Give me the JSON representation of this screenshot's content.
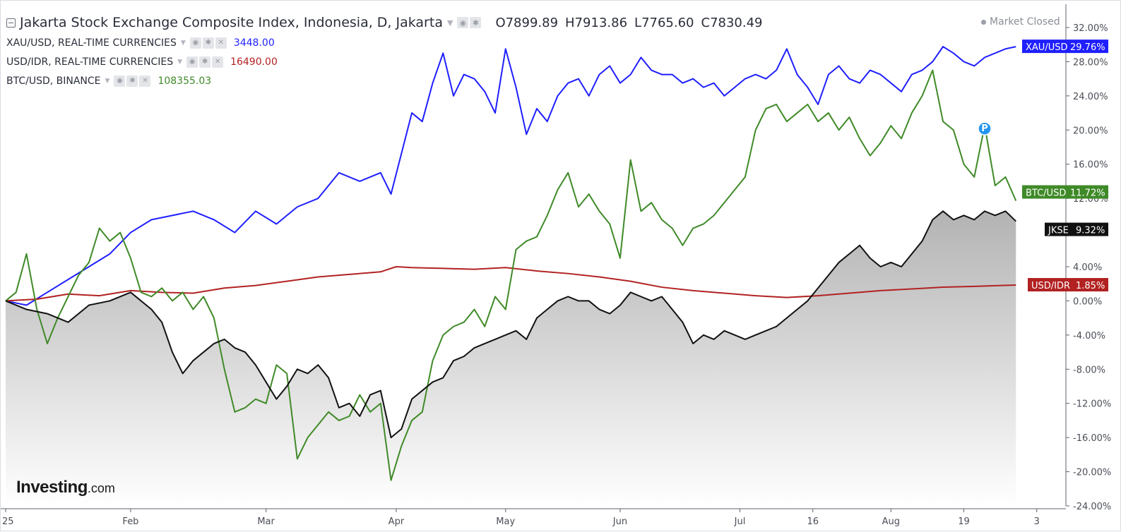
{
  "header": {
    "title": "Jakarta Stock Exchange Composite Index, Indonesia, D, Jakarta",
    "ohlc": [
      {
        "k": "O",
        "v": "7899.89"
      },
      {
        "k": "H",
        "v": "7913.86"
      },
      {
        "k": "L",
        "v": "7765.60"
      },
      {
        "k": "C",
        "v": "7830.49"
      }
    ],
    "status": "Market Closed"
  },
  "comparisons": [
    {
      "label": "XAU/USD, REAL-TIME CURRENCIES",
      "value": "3448.00",
      "color": "#1f1fff"
    },
    {
      "label": "USD/IDR, REAL-TIME CURRENCIES",
      "value": "16490.00",
      "color": "#b22222"
    },
    {
      "label": "BTC/USD, BINANCE",
      "value": "108355.03",
      "color": "#3f8a28"
    }
  ],
  "brand": {
    "main": "Investing",
    "tld": ".com"
  },
  "pin_label": "P",
  "chart_data": {
    "type": "line",
    "x": {
      "unit": "trading day index (0 = start of 2025)",
      "range": [
        0,
        196
      ],
      "tick_labels": [
        "25",
        "Feb",
        "Mar",
        "Apr",
        "May",
        "Jun",
        "Jul",
        "16",
        "Aug",
        "19",
        "3"
      ],
      "tick_positions": [
        0,
        24,
        50,
        75,
        96,
        118,
        141,
        155,
        170,
        184,
        198
      ]
    },
    "y": {
      "unit": "percent change",
      "range": [
        -24,
        32
      ],
      "ticks": [
        "32.00%",
        "28.00%",
        "24.00%",
        "20.00%",
        "16.00%",
        "12.00%",
        "8.00%",
        "4.00%",
        "0.00%",
        "-4.00%",
        "-8.00%",
        "-12.00%",
        "-16.00%",
        "-20.00%",
        "-24.00%"
      ],
      "tick_values": [
        32,
        28,
        24,
        20,
        16,
        12,
        8,
        4,
        0,
        -4,
        -8,
        -12,
        -16,
        -20,
        -24
      ]
    },
    "series": [
      {
        "name": "XAU/USD",
        "tag": "XAU/USD",
        "last_label": "29.76%",
        "color": "#1f1fff",
        "x": [
          0,
          4,
          8,
          12,
          16,
          20,
          24,
          28,
          32,
          36,
          40,
          44,
          48,
          52,
          56,
          60,
          64,
          68,
          72,
          74,
          78,
          80,
          82,
          84,
          86,
          88,
          90,
          92,
          94,
          96,
          98,
          100,
          102,
          104,
          106,
          108,
          110,
          112,
          114,
          116,
          118,
          120,
          122,
          124,
          126,
          128,
          130,
          132,
          134,
          136,
          138,
          140,
          142,
          144,
          146,
          148,
          150,
          152,
          154,
          156,
          158,
          160,
          162,
          164,
          166,
          168,
          170,
          172,
          174,
          176,
          178,
          180,
          182,
          184,
          186,
          188,
          190,
          192,
          194
        ],
        "y": [
          0.0,
          -0.5,
          1.0,
          2.5,
          4.0,
          5.5,
          8.0,
          9.5,
          10.0,
          10.5,
          9.5,
          8.0,
          10.5,
          9.0,
          11.0,
          12.0,
          15.0,
          14.0,
          15.0,
          12.5,
          22.0,
          21.0,
          25.5,
          29.0,
          24.0,
          26.5,
          26.0,
          24.5,
          22.0,
          29.5,
          25.0,
          19.5,
          22.5,
          21.0,
          24.0,
          25.5,
          26.0,
          24.0,
          26.5,
          27.5,
          25.5,
          26.5,
          28.5,
          27.0,
          26.5,
          26.5,
          25.5,
          26.0,
          25.0,
          25.5,
          24.0,
          25.0,
          26.0,
          26.5,
          26.0,
          27.0,
          29.5,
          26.5,
          25.0,
          23.0,
          26.5,
          27.5,
          26.0,
          25.5,
          27.0,
          26.5,
          25.5,
          24.5,
          26.5,
          27.0,
          28.0,
          29.76,
          29.0,
          28.0,
          27.5,
          28.5,
          29.0,
          29.5,
          29.76
        ]
      },
      {
        "name": "USD/IDR",
        "tag": "USD/IDR",
        "last_label": "1.85%",
        "color": "#b22222",
        "x": [
          0,
          6,
          12,
          18,
          24,
          30,
          36,
          42,
          48,
          54,
          60,
          66,
          72,
          75,
          78,
          84,
          90,
          96,
          102,
          108,
          114,
          120,
          126,
          132,
          138,
          144,
          150,
          156,
          162,
          168,
          174,
          180,
          186,
          194
        ],
        "y": [
          0.0,
          0.2,
          0.8,
          0.6,
          1.2,
          1.0,
          0.9,
          1.5,
          1.8,
          2.3,
          2.8,
          3.1,
          3.4,
          4.0,
          3.9,
          3.8,
          3.7,
          3.9,
          3.5,
          3.2,
          2.8,
          2.3,
          1.6,
          1.2,
          0.9,
          0.6,
          0.4,
          0.6,
          0.9,
          1.2,
          1.4,
          1.6,
          1.7,
          1.85
        ]
      },
      {
        "name": "BTC/USD",
        "tag": "BTC/USD",
        "last_label": "11.72%",
        "color": "#3f8a28",
        "x": [
          0,
          2,
          4,
          6,
          8,
          10,
          12,
          14,
          16,
          18,
          20,
          22,
          24,
          26,
          28,
          30,
          32,
          34,
          36,
          38,
          40,
          42,
          44,
          46,
          48,
          50,
          52,
          54,
          56,
          58,
          60,
          62,
          64,
          66,
          68,
          70,
          72,
          74,
          76,
          78,
          80,
          82,
          84,
          86,
          88,
          90,
          92,
          94,
          96,
          98,
          100,
          102,
          104,
          106,
          108,
          110,
          112,
          114,
          116,
          118,
          120,
          122,
          124,
          126,
          128,
          130,
          132,
          134,
          136,
          138,
          140,
          142,
          144,
          146,
          148,
          150,
          152,
          154,
          156,
          158,
          160,
          162,
          164,
          166,
          168,
          170,
          172,
          174,
          176,
          178,
          180,
          182,
          184,
          186,
          188,
          190,
          192,
          194
        ],
        "y": [
          0.0,
          1.0,
          5.5,
          -1.0,
          -5.0,
          -2.0,
          0.5,
          3.0,
          4.5,
          8.5,
          7.0,
          8.0,
          5.0,
          1.0,
          0.5,
          1.5,
          0.0,
          1.0,
          -1.0,
          0.5,
          -2.0,
          -8.0,
          -13.0,
          -12.5,
          -11.5,
          -12.0,
          -7.5,
          -8.5,
          -18.5,
          -16.0,
          -14.5,
          -13.0,
          -14.0,
          -13.5,
          -11.0,
          -13.0,
          -12.0,
          -21.0,
          -17.0,
          -14.0,
          -13.0,
          -7.0,
          -4.0,
          -3.0,
          -2.5,
          -1.0,
          -3.0,
          0.5,
          -1.0,
          6.0,
          7.0,
          7.5,
          10.0,
          13.0,
          15.0,
          11.0,
          12.5,
          10.5,
          9.0,
          5.0,
          16.5,
          10.5,
          11.5,
          9.5,
          8.5,
          6.5,
          8.5,
          9.0,
          10.0,
          11.5,
          13.0,
          14.5,
          20.0,
          22.5,
          23.0,
          21.0,
          22.0,
          23.0,
          21.0,
          22.0,
          20.0,
          21.5,
          19.0,
          17.0,
          18.5,
          20.5,
          19.0,
          22.0,
          24.0,
          27.0,
          21.0,
          20.0,
          16.0,
          14.5,
          20.5,
          13.5,
          14.5,
          11.72
        ]
      },
      {
        "name": "JKSE",
        "tag": "JKSE",
        "last_label": "9.32%",
        "color": "#111111",
        "x": [
          0,
          4,
          8,
          12,
          16,
          20,
          24,
          28,
          30,
          32,
          34,
          36,
          38,
          40,
          42,
          44,
          46,
          48,
          50,
          52,
          54,
          56,
          58,
          60,
          62,
          64,
          66,
          68,
          70,
          72,
          74,
          76,
          78,
          80,
          82,
          84,
          86,
          88,
          90,
          92,
          94,
          96,
          98,
          100,
          102,
          104,
          106,
          108,
          110,
          112,
          114,
          116,
          118,
          120,
          122,
          124,
          126,
          128,
          130,
          132,
          134,
          136,
          138,
          140,
          142,
          144,
          146,
          148,
          150,
          152,
          154,
          156,
          158,
          160,
          162,
          164,
          166,
          168,
          170,
          172,
          174,
          176,
          178,
          180,
          182,
          184,
          186,
          188,
          190,
          192,
          194
        ],
        "y": [
          0.0,
          -1.0,
          -1.5,
          -2.5,
          -0.5,
          0.0,
          1.0,
          -1.0,
          -2.5,
          -6.0,
          -8.5,
          -7.0,
          -6.0,
          -5.0,
          -4.5,
          -5.5,
          -6.0,
          -7.5,
          -9.5,
          -11.5,
          -10.0,
          -8.0,
          -8.5,
          -7.5,
          -9.0,
          -12.5,
          -12.0,
          -13.5,
          -11.0,
          -10.5,
          -16.0,
          -15.0,
          -11.5,
          -10.5,
          -9.5,
          -9.0,
          -7.0,
          -6.5,
          -5.5,
          -5.0,
          -4.5,
          -4.0,
          -3.5,
          -4.5,
          -2.0,
          -1.0,
          0.0,
          0.5,
          0.0,
          0.0,
          -1.0,
          -1.5,
          -0.5,
          1.0,
          0.5,
          0.0,
          0.5,
          -1.0,
          -2.5,
          -5.0,
          -4.0,
          -4.5,
          -3.5,
          -4.0,
          -4.5,
          -4.0,
          -3.5,
          -3.0,
          -2.0,
          -1.0,
          0.0,
          1.5,
          3.0,
          4.5,
          5.5,
          6.5,
          5.0,
          4.0,
          4.5,
          4.0,
          5.5,
          7.0,
          9.5,
          10.5,
          9.5,
          10.0,
          9.5,
          10.5,
          10.0,
          10.5,
          9.32
        ]
      }
    ],
    "area_fill_series": "JKSE",
    "legend": "top-left",
    "grid": false
  }
}
